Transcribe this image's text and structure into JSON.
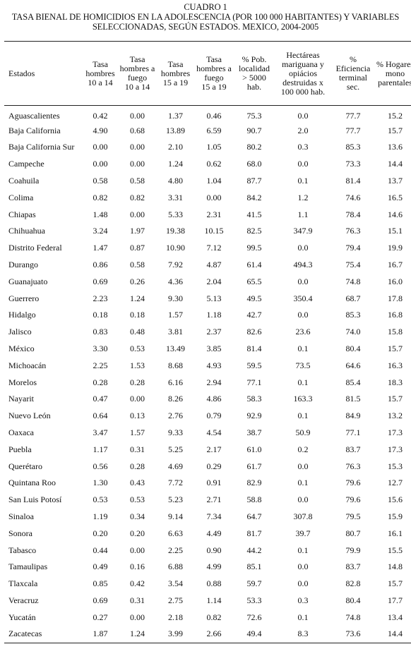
{
  "caption": {
    "line1": "CUADRO 1",
    "line2": "TASA BIENAL DE HOMICIDIOS EN LA ADOLESCENCIA (POR 100 000 HABITANTES) Y VARIABLES",
    "line3": "SELECCIONADAS, SEGÚN ESTADOS. MEXICO, 2004-2005"
  },
  "headers": [
    [
      "Estados"
    ],
    [
      "Tasa",
      "hombres",
      "10 a 14"
    ],
    [
      "Tasa",
      "hombres a",
      "fuego",
      "10 a 14"
    ],
    [
      "Tasa",
      "hombres",
      "15 a 19"
    ],
    [
      "Tasa",
      "hombres a",
      "fuego",
      "15 a 19"
    ],
    [
      "% Pob.",
      "localidad",
      "> 5000",
      "hab."
    ],
    [
      "Hectáreas",
      "mariguana y",
      "opiácios",
      "destruidas x",
      "100 000 hab."
    ],
    [
      "%",
      "Eficiencia",
      "terminal",
      "sec."
    ],
    [
      "% Hogares",
      "mono",
      "parentales"
    ]
  ],
  "rows": [
    [
      "Aguascalientes",
      "0.42",
      "0.00",
      "1.37",
      "0.46",
      "75.3",
      "0.0",
      "77.7",
      "15.2"
    ],
    [
      "Baja California",
      "4.90",
      "0.68",
      "13.89",
      "6.59",
      "90.7",
      "2.0",
      "77.7",
      "15.7"
    ],
    [
      "Baja California Sur",
      "0.00",
      "0.00",
      "2.10",
      "1.05",
      "80.2",
      "0.3",
      "85.3",
      "13.6"
    ],
    [
      "Campeche",
      "0.00",
      "0.00",
      "1.24",
      "0.62",
      "68.0",
      "0.0",
      "73.3",
      "14.4"
    ],
    [
      "Coahuila",
      "0.58",
      "0.58",
      "4.80",
      "1.04",
      "87.7",
      "0.1",
      "81.4",
      "13.7"
    ],
    [
      "Colima",
      "0.82",
      "0.82",
      "3.31",
      "0.00",
      "84.2",
      "1.2",
      "74.6",
      "16.5"
    ],
    [
      "Chiapas",
      "1.48",
      "0.00",
      "5.33",
      "2.31",
      "41.5",
      "1.1",
      "78.4",
      "14.6"
    ],
    [
      "Chihuahua",
      "3.24",
      "1.97",
      "19.38",
      "10.15",
      "82.5",
      "347.9",
      "76.3",
      "15.1"
    ],
    [
      "Distrito Federal",
      "1.47",
      "0.87",
      "10.90",
      "7.12",
      "99.5",
      "0.0",
      "79.4",
      "19.9"
    ],
    [
      "Durango",
      "0.86",
      "0.58",
      "7.92",
      "4.87",
      "61.4",
      "494.3",
      "75.4",
      "16.7"
    ],
    [
      "Guanajuato",
      "0.69",
      "0.26",
      "4.36",
      "2.04",
      "65.5",
      "0.0",
      "74.8",
      "16.0"
    ],
    [
      "Guerrero",
      "2.23",
      "1.24",
      "9.30",
      "5.13",
      "49.5",
      "350.4",
      "68.7",
      "17.8"
    ],
    [
      "Hidalgo",
      "0.18",
      "0.18",
      "1.57",
      "1.18",
      "42.7",
      "0.0",
      "85.3",
      "16.8"
    ],
    [
      "Jalisco",
      "0.83",
      "0.48",
      "3.81",
      "2.37",
      "82.6",
      "23.6",
      "74.0",
      "15.8"
    ],
    [
      "México",
      "3.30",
      "0.53",
      "13.49",
      "3.85",
      "81.4",
      "0.1",
      "80.4",
      "15.7"
    ],
    [
      "Michoacán",
      "2.25",
      "1.53",
      "8.68",
      "4.93",
      "59.5",
      "73.5",
      "64.6",
      "16.3"
    ],
    [
      "Morelos",
      "0.28",
      "0.28",
      "6.16",
      "2.94",
      "77.1",
      "0.1",
      "85.4",
      "18.3"
    ],
    [
      "Nayarit",
      "0.47",
      "0.00",
      "8.26",
      "4.86",
      "58.3",
      "163.3",
      "81.5",
      "15.7"
    ],
    [
      "Nuevo León",
      "0.64",
      "0.13",
      "2.76",
      "0.79",
      "92.9",
      "0.1",
      "84.9",
      "13.2"
    ],
    [
      "Oaxaca",
      "3.47",
      "1.57",
      "9.33",
      "4.54",
      "38.7",
      "50.9",
      "77.1",
      "17.3"
    ],
    [
      "Puebla",
      "1.17",
      "0.31",
      "5.25",
      "2.17",
      "61.0",
      "0.2",
      "83.7",
      "17.3"
    ],
    [
      "Querétaro",
      "0.56",
      "0.28",
      "4.69",
      "0.29",
      "61.7",
      "0.0",
      "76.3",
      "15.3"
    ],
    [
      "Quintana Roo",
      "1.30",
      "0.43",
      "7.72",
      "0.91",
      "82.9",
      "0.1",
      "79.6",
      "12.7"
    ],
    [
      "San Luis Potosí",
      "0.53",
      "0.53",
      "5.23",
      "2.71",
      "58.8",
      "0.0",
      "79.6",
      "15.6"
    ],
    [
      "Sinaloa",
      "1.19",
      "0.34",
      "9.14",
      "7.34",
      "64.7",
      "307.8",
      "79.5",
      "15.9"
    ],
    [
      "Sonora",
      "0.20",
      "0.20",
      "6.63",
      "4.49",
      "81.7",
      "39.7",
      "80.7",
      "16.1"
    ],
    [
      "Tabasco",
      "0.44",
      "0.00",
      "2.25",
      "0.90",
      "44.2",
      "0.1",
      "79.9",
      "15.5"
    ],
    [
      "Tamaulipas",
      "0.49",
      "0.16",
      "6.88",
      "4.99",
      "85.1",
      "0.0",
      "83.7",
      "14.8"
    ],
    [
      "Tlaxcala",
      "0.85",
      "0.42",
      "3.54",
      "0.88",
      "59.7",
      "0.0",
      "82.8",
      "15.7"
    ],
    [
      "Veracruz",
      "0.69",
      "0.31",
      "2.75",
      "1.14",
      "53.3",
      "0.3",
      "80.4",
      "17.7"
    ],
    [
      "Yucatán",
      "0.27",
      "0.00",
      "2.18",
      "0.82",
      "72.6",
      "0.1",
      "74.8",
      "13.4"
    ],
    [
      "Zacatecas",
      "1.87",
      "1.24",
      "3.99",
      "2.66",
      "49.4",
      "8.3",
      "73.6",
      "14.4"
    ]
  ]
}
